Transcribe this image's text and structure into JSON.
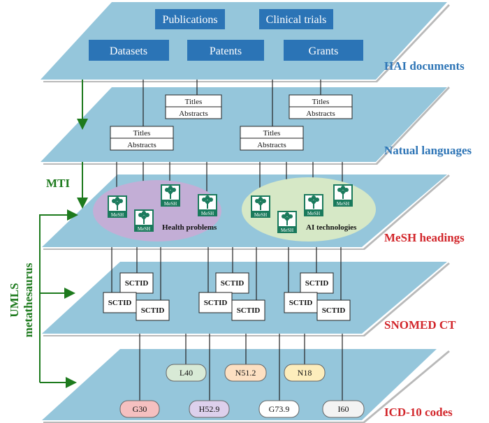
{
  "layers": {
    "hai": "HAI documents",
    "natural": "Natual languages",
    "mesh": "MeSH headings",
    "snomed": "SNOMED CT",
    "icd": "ICD-10 codes"
  },
  "documents": [
    "Publications",
    "Clinical trials",
    "Datasets",
    "Patents",
    "Grants"
  ],
  "text_fields": {
    "titles": "Titles",
    "abstracts": "Abstracts"
  },
  "mesh": {
    "icon_label": "MeSH",
    "groups": [
      "Health problems",
      "AI technologies"
    ],
    "group_colors": [
      "#c3aed6",
      "#d6e8c6"
    ]
  },
  "sctid_label": "SCTID",
  "icd_codes": [
    {
      "code": "L40",
      "color": "#d8ead6"
    },
    {
      "code": "N51.2",
      "color": "#fde0c2"
    },
    {
      "code": "N18",
      "color": "#fdedbc"
    },
    {
      "code": "G30",
      "color": "#f5c0c0"
    },
    {
      "code": "H52.9",
      "color": "#ddd0ec"
    },
    {
      "code": "G73.9",
      "color": "#ffffff"
    },
    {
      "code": "I60",
      "color": "#f3f3f3"
    }
  ],
  "arrows": {
    "mti": "MTI",
    "umls_line1": "UMLS",
    "umls_line2": "metathesaurus"
  },
  "colors": {
    "plane": "#95c6db",
    "doc_box": "#2b74b6",
    "green": "#1d7a1d",
    "mesh_icon": "#1a7a5c"
  }
}
